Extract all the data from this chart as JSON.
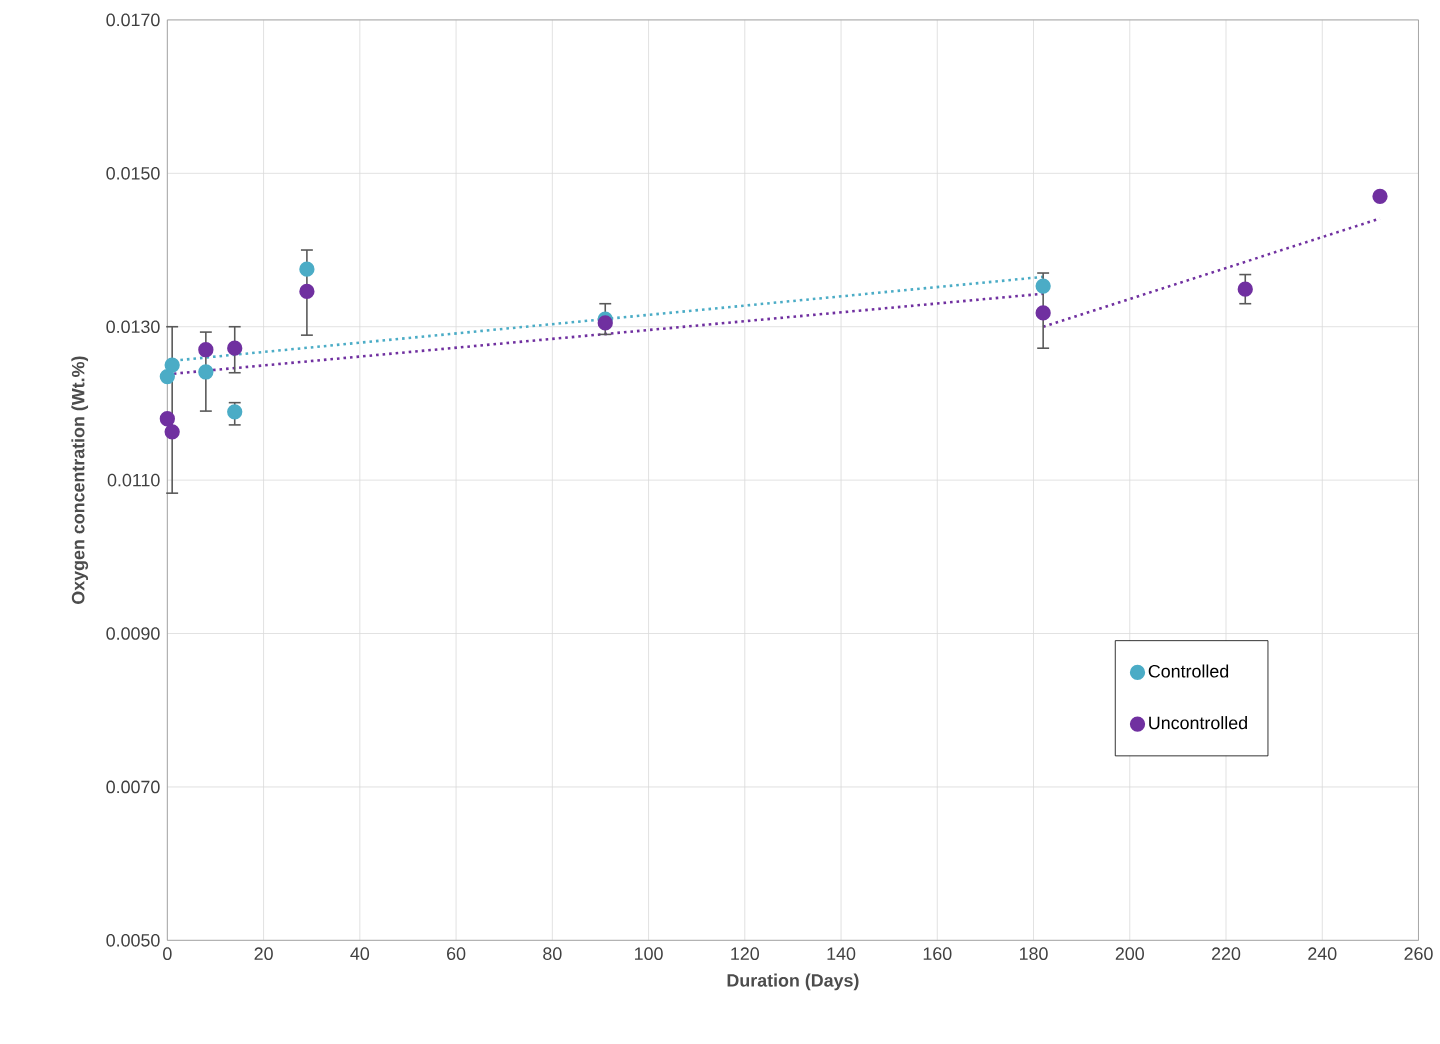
{
  "chart_data": {
    "type": "scatter",
    "xlabel": "Duration (Days)",
    "ylabel": "Oxygen concentration (Wt.%)",
    "xlim": [
      0,
      260
    ],
    "xticks": [
      0,
      20,
      40,
      60,
      80,
      100,
      120,
      140,
      160,
      180,
      200,
      220,
      240,
      260
    ],
    "ylim": [
      0.005,
      0.017
    ],
    "yticks": [
      {
        "value": 0.005,
        "label": "0.0050"
      },
      {
        "value": 0.007,
        "label": "0.0070"
      },
      {
        "value": 0.009,
        "label": "0.0090"
      },
      {
        "value": 0.011,
        "label": "0.0110"
      },
      {
        "value": 0.013,
        "label": "0.0130"
      },
      {
        "value": 0.015,
        "label": "0.0150"
      },
      {
        "value": 0.017,
        "label": "0.0170"
      }
    ],
    "grid": true,
    "legend": "bottom right",
    "series": [
      {
        "type": "line",
        "color": "#4bacc6",
        "line_style": "dotted",
        "marker": "none",
        "x": [
          0,
          182
        ],
        "values": [
          0.01255,
          0.01365
        ]
      },
      {
        "type": "line",
        "color": "#7030a0",
        "line_style": "dotted",
        "marker": "none",
        "x": [
          0,
          182
        ],
        "values": [
          0.01238,
          0.01343
        ]
      },
      {
        "type": "line",
        "color": "#7030a0",
        "line_style": "dotted",
        "marker": "none",
        "x": [
          182,
          252
        ],
        "values": [
          0.013,
          0.01441
        ]
      },
      {
        "name": "Controlled",
        "color": "#4bacc6",
        "marker": "circle",
        "x": [
          0,
          1,
          8,
          14,
          29,
          91,
          182
        ],
        "values": [
          0.01235,
          0.0125,
          0.01241,
          0.01189,
          0.01375,
          0.0131,
          0.01353
        ],
        "errors": [
          null,
          null,
          [
            0.0119,
            0.01293
          ],
          [
            0.01172,
            0.01201
          ],
          null,
          null,
          null
        ]
      },
      {
        "name": "Uncontrolled",
        "color": "#7030a0",
        "marker": "circle",
        "x": [
          0,
          1,
          8,
          14,
          29,
          91,
          182,
          224,
          252
        ],
        "values": [
          0.0118,
          0.01163,
          0.0127,
          0.01272,
          0.01346,
          0.01305,
          0.01318,
          0.01349,
          0.0147
        ],
        "errors": [
          null,
          [
            0.01083,
            0.013
          ],
          null,
          [
            0.0124,
            0.013
          ],
          [
            0.01289,
            0.014
          ],
          [
            0.0129,
            0.0133
          ],
          [
            0.01272,
            0.0137
          ],
          [
            0.0133,
            0.01368
          ],
          null
        ]
      }
    ]
  }
}
